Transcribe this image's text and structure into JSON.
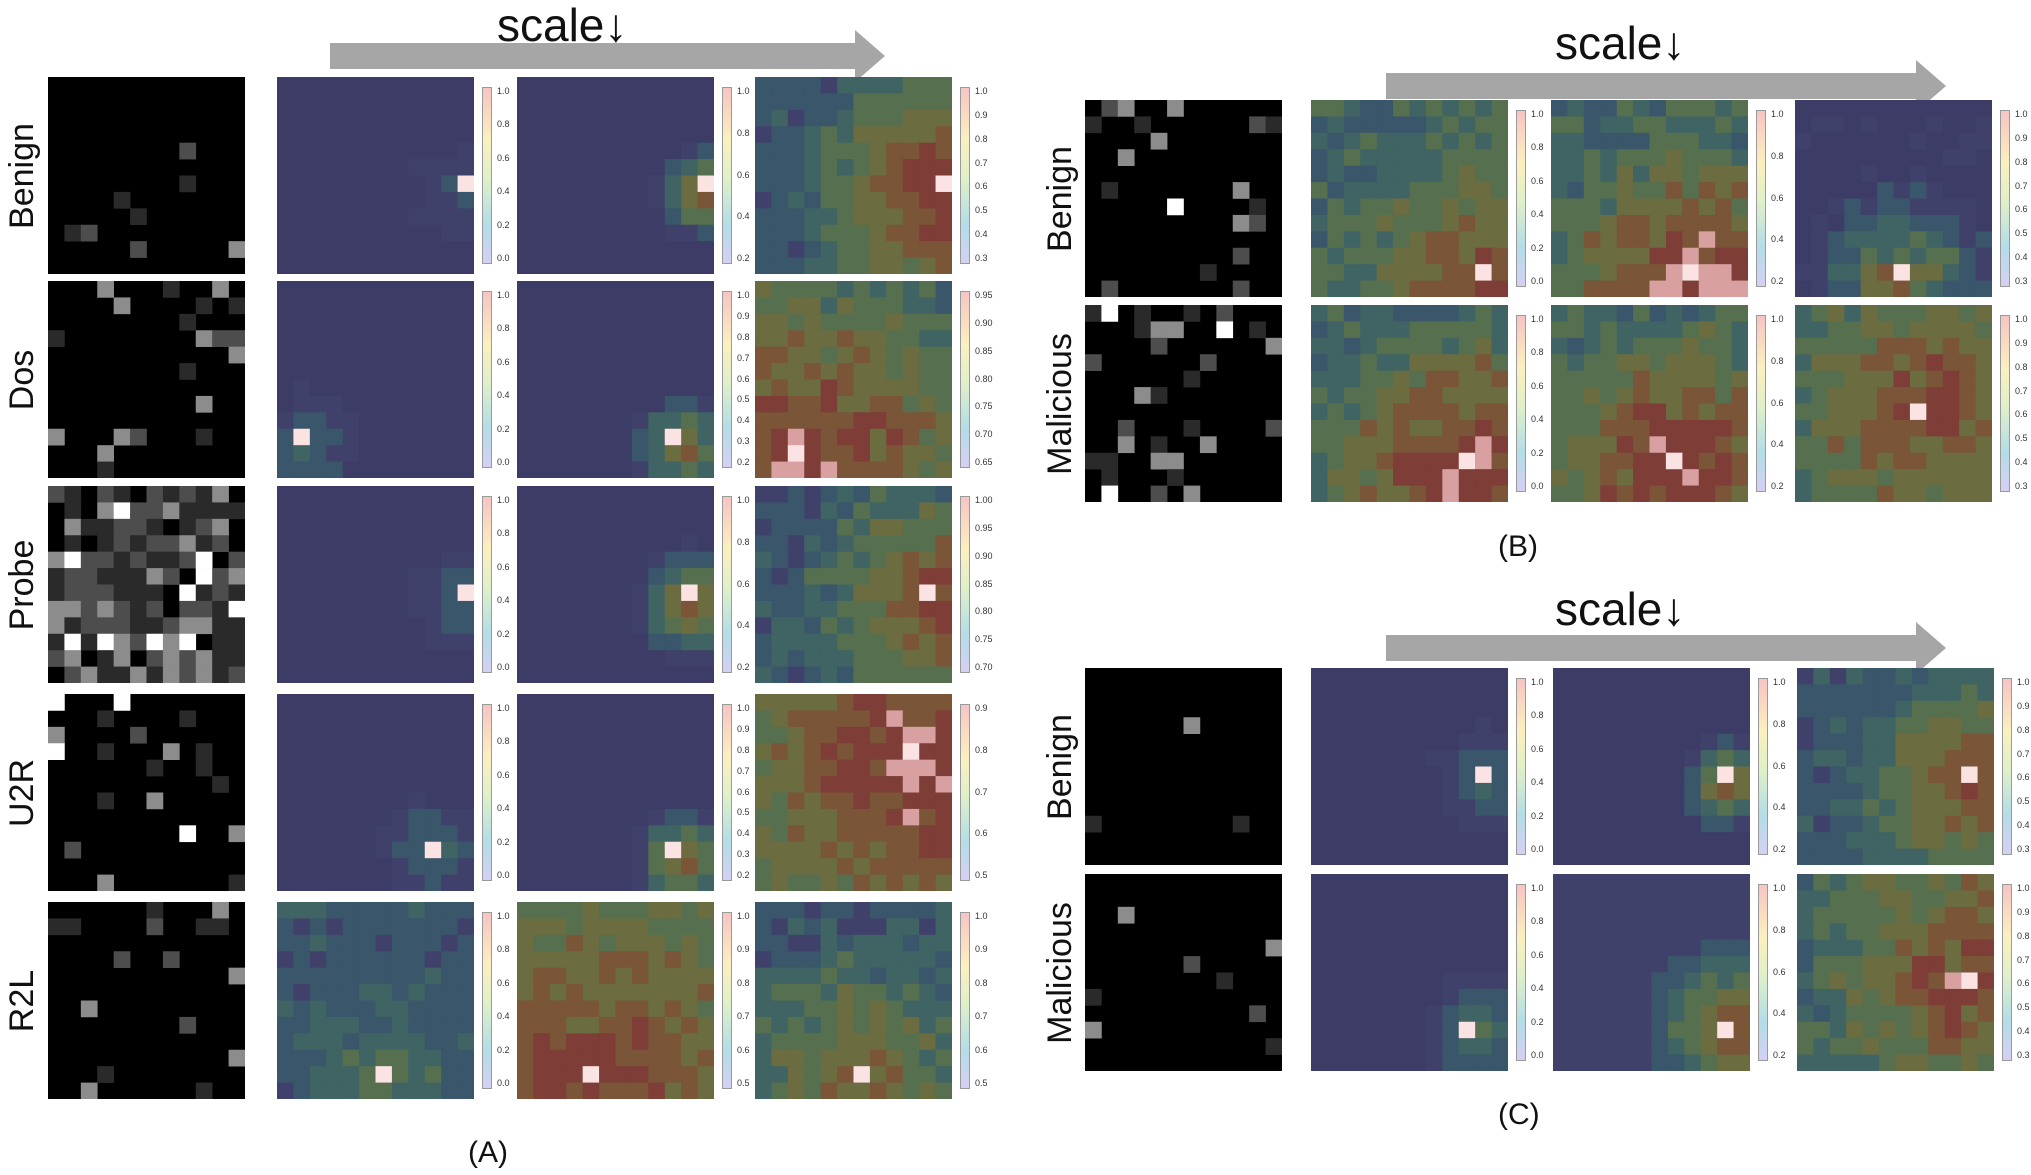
{
  "figure": {
    "scale_label": "scale↓",
    "panel_a": {
      "label": "(A)",
      "rows": [
        {
          "name": "Benign",
          "ticks": [
            [
              "1.0",
              "0.8",
              "0.6",
              "0.4",
              "0.2",
              "0.0"
            ],
            [
              "1.0",
              "0.8",
              "0.6",
              "0.4",
              "0.2"
            ],
            [
              "1.0",
              "0.9",
              "0.8",
              "0.7",
              "0.6",
              "0.5",
              "0.4",
              "0.3"
            ]
          ]
        },
        {
          "name": "Dos",
          "ticks": [
            [
              "1.0",
              "0.8",
              "0.6",
              "0.4",
              "0.2",
              "0.0"
            ],
            [
              "1.0",
              "0.9",
              "0.8",
              "0.7",
              "0.6",
              "0.5",
              "0.4",
              "0.3",
              "0.2"
            ],
            [
              "0.95",
              "0.90",
              "0.85",
              "0.80",
              "0.75",
              "0.70",
              "0.65"
            ]
          ]
        },
        {
          "name": "Probe",
          "ticks": [
            [
              "1.0",
              "0.8",
              "0.6",
              "0.4",
              "0.2",
              "0.0"
            ],
            [
              "1.0",
              "0.8",
              "0.6",
              "0.4",
              "0.2"
            ],
            [
              "1.00",
              "0.95",
              "0.90",
              "0.85",
              "0.80",
              "0.75",
              "0.70"
            ]
          ]
        },
        {
          "name": "U2R",
          "ticks": [
            [
              "1.0",
              "0.8",
              "0.6",
              "0.4",
              "0.2",
              "0.0"
            ],
            [
              "1.0",
              "0.9",
              "0.8",
              "0.7",
              "0.6",
              "0.5",
              "0.4",
              "0.3",
              "0.2"
            ],
            [
              "0.9",
              "0.8",
              "0.7",
              "0.6",
              "0.5"
            ]
          ]
        },
        {
          "name": "R2L",
          "ticks": [
            [
              "1.0",
              "0.8",
              "0.6",
              "0.4",
              "0.2",
              "0.0"
            ],
            [
              "1.0",
              "0.9",
              "0.8",
              "0.7",
              "0.6",
              "0.5"
            ],
            [
              "1.0",
              "0.9",
              "0.8",
              "0.7",
              "0.6",
              "0.5"
            ]
          ]
        }
      ]
    },
    "panel_b": {
      "label": "(B)",
      "rows": [
        {
          "name": "Benign",
          "ticks": [
            [
              "1.0",
              "0.8",
              "0.6",
              "0.4",
              "0.2",
              "0.0"
            ],
            [
              "1.0",
              "0.8",
              "0.6",
              "0.4",
              "0.2"
            ],
            [
              "1.0",
              "0.9",
              "0.8",
              "0.7",
              "0.6",
              "0.5",
              "0.4",
              "0.3"
            ]
          ]
        },
        {
          "name": "Malicious",
          "ticks": [
            [
              "1.0",
              "0.8",
              "0.6",
              "0.4",
              "0.2",
              "0.0"
            ],
            [
              "1.0",
              "0.8",
              "0.6",
              "0.4",
              "0.2"
            ],
            [
              "1.0",
              "0.9",
              "0.8",
              "0.7",
              "0.6",
              "0.5",
              "0.4",
              "0.3"
            ]
          ]
        }
      ]
    },
    "panel_c": {
      "label": "(C)",
      "rows": [
        {
          "name": "Benign",
          "ticks": [
            [
              "1.0",
              "0.8",
              "0.6",
              "0.4",
              "0.2",
              "0.0"
            ],
            [
              "1.0",
              "0.8",
              "0.6",
              "0.4",
              "0.2"
            ],
            [
              "1.0",
              "0.9",
              "0.8",
              "0.7",
              "0.6",
              "0.5",
              "0.4",
              "0.3"
            ]
          ]
        },
        {
          "name": "Malicious",
          "ticks": [
            [
              "1.0",
              "0.8",
              "0.6",
              "0.4",
              "0.2",
              "0.0"
            ],
            [
              "1.0",
              "0.8",
              "0.6",
              "0.4",
              "0.2"
            ],
            [
              "1.0",
              "0.9",
              "0.8",
              "0.7",
              "0.6",
              "0.5",
              "0.4",
              "0.3"
            ]
          ]
        }
      ]
    }
  },
  "colors": {
    "arrow": "#a6a6a6",
    "background": "#ffffff",
    "raw_tile": "#000000",
    "heatmap_low": "#3c3c66"
  }
}
